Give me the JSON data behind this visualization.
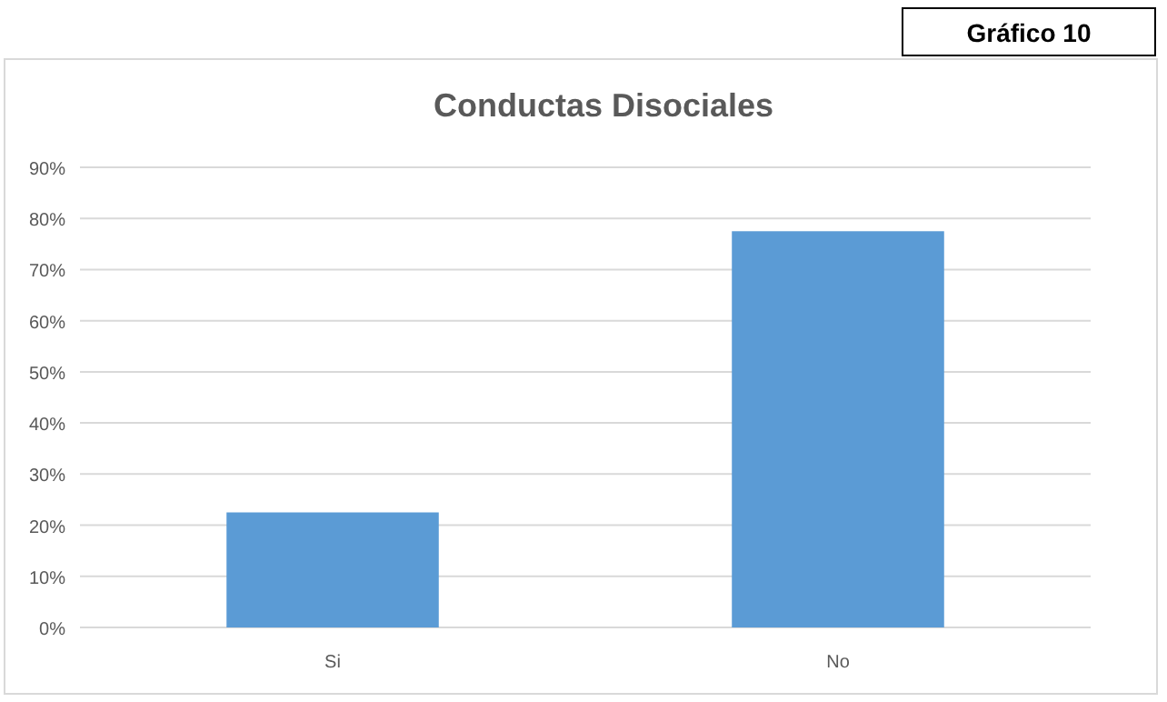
{
  "chart_data": {
    "type": "bar",
    "title": "Conductas Disociales",
    "annotations": [
      "Gráfico 10"
    ],
    "categories": [
      "Si",
      "No"
    ],
    "values": [
      22.5,
      77.5
    ],
    "color": "#5b9bd5",
    "ylim": [
      0,
      90
    ],
    "yticks": [
      {
        "value": 0,
        "label": "0%"
      },
      {
        "value": 10,
        "label": "10%"
      },
      {
        "value": 20,
        "label": "20%"
      },
      {
        "value": 30,
        "label": "30%"
      },
      {
        "value": 40,
        "label": "40%"
      },
      {
        "value": 50,
        "label": "50%"
      },
      {
        "value": 60,
        "label": "60%"
      },
      {
        "value": 70,
        "label": "70%"
      },
      {
        "value": 80,
        "label": "80%"
      },
      {
        "value": 90,
        "label": "90%"
      }
    ],
    "grid": "y"
  }
}
